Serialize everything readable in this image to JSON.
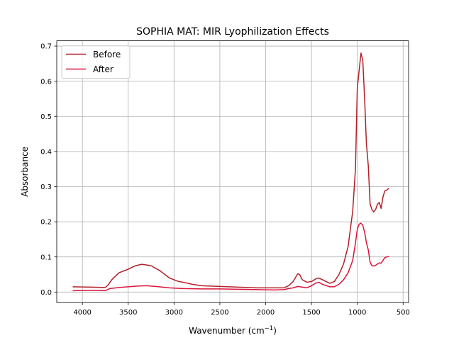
{
  "chart_data": {
    "type": "line",
    "title": "SOPHIA MAT: MIR Lyophilization Effects",
    "xlabel": "Wavenumber (cm",
    "xlabel_sup": "−1",
    "xlabel_close": ")",
    "ylabel": "Absorbance",
    "xlim": [
      4280,
      440
    ],
    "ylim": [
      -0.03,
      0.715
    ],
    "x_inverted": true,
    "grid": true,
    "legend_position": "upper-left",
    "xticks": [
      4000,
      3500,
      3000,
      2500,
      2000,
      1500,
      1000,
      500
    ],
    "xtick_labels": [
      "4000",
      "3500",
      "3000",
      "2500",
      "2000",
      "1500",
      "1000",
      "500"
    ],
    "yticks": [
      0.0,
      0.1,
      0.2,
      0.3,
      0.4,
      0.5,
      0.6,
      0.7
    ],
    "ytick_labels": [
      "0.0",
      "0.1",
      "0.2",
      "0.3",
      "0.4",
      "0.5",
      "0.6",
      "0.7"
    ],
    "series": [
      {
        "name": "Before",
        "color": "#b22028",
        "points": [
          [
            4100,
            0.015
          ],
          [
            3900,
            0.014
          ],
          [
            3750,
            0.013
          ],
          [
            3720,
            0.02
          ],
          [
            3680,
            0.035
          ],
          [
            3600,
            0.055
          ],
          [
            3500,
            0.065
          ],
          [
            3420,
            0.075
          ],
          [
            3350,
            0.079
          ],
          [
            3250,
            0.075
          ],
          [
            3150,
            0.06
          ],
          [
            3050,
            0.04
          ],
          [
            2950,
            0.03
          ],
          [
            2900,
            0.028
          ],
          [
            2800,
            0.022
          ],
          [
            2700,
            0.018
          ],
          [
            2500,
            0.016
          ],
          [
            2300,
            0.014
          ],
          [
            2100,
            0.012
          ],
          [
            1900,
            0.012
          ],
          [
            1800,
            0.012
          ],
          [
            1750,
            0.018
          ],
          [
            1700,
            0.03
          ],
          [
            1650,
            0.052
          ],
          [
            1630,
            0.05
          ],
          [
            1600,
            0.035
          ],
          [
            1550,
            0.028
          ],
          [
            1500,
            0.03
          ],
          [
            1450,
            0.038
          ],
          [
            1420,
            0.04
          ],
          [
            1380,
            0.035
          ],
          [
            1300,
            0.025
          ],
          [
            1250,
            0.03
          ],
          [
            1200,
            0.05
          ],
          [
            1150,
            0.08
          ],
          [
            1100,
            0.13
          ],
          [
            1050,
            0.23
          ],
          [
            1020,
            0.35
          ],
          [
            1000,
            0.58
          ],
          [
            980,
            0.63
          ],
          [
            960,
            0.68
          ],
          [
            940,
            0.66
          ],
          [
            920,
            0.55
          ],
          [
            900,
            0.42
          ],
          [
            880,
            0.36
          ],
          [
            860,
            0.25
          ],
          [
            840,
            0.235
          ],
          [
            820,
            0.228
          ],
          [
            800,
            0.235
          ],
          [
            780,
            0.25
          ],
          [
            760,
            0.255
          ],
          [
            740,
            0.238
          ],
          [
            720,
            0.27
          ],
          [
            700,
            0.288
          ],
          [
            680,
            0.29
          ],
          [
            660,
            0.294
          ]
        ]
      },
      {
        "name": "After",
        "color": "#dc143c",
        "points": [
          [
            4100,
            0.004
          ],
          [
            3900,
            0.005
          ],
          [
            3750,
            0.004
          ],
          [
            3700,
            0.01
          ],
          [
            3600,
            0.013
          ],
          [
            3500,
            0.015
          ],
          [
            3400,
            0.017
          ],
          [
            3300,
            0.018
          ],
          [
            3200,
            0.016
          ],
          [
            3050,
            0.012
          ],
          [
            2900,
            0.01
          ],
          [
            2700,
            0.009
          ],
          [
            2500,
            0.009
          ],
          [
            2300,
            0.008
          ],
          [
            2100,
            0.007
          ],
          [
            1900,
            0.006
          ],
          [
            1800,
            0.007
          ],
          [
            1750,
            0.01
          ],
          [
            1700,
            0.012
          ],
          [
            1650,
            0.016
          ],
          [
            1600,
            0.014
          ],
          [
            1550,
            0.012
          ],
          [
            1500,
            0.018
          ],
          [
            1450,
            0.026
          ],
          [
            1420,
            0.028
          ],
          [
            1380,
            0.022
          ],
          [
            1300,
            0.015
          ],
          [
            1250,
            0.015
          ],
          [
            1200,
            0.022
          ],
          [
            1150,
            0.035
          ],
          [
            1100,
            0.055
          ],
          [
            1050,
            0.09
          ],
          [
            1020,
            0.14
          ],
          [
            1000,
            0.178
          ],
          [
            980,
            0.193
          ],
          [
            960,
            0.196
          ],
          [
            940,
            0.19
          ],
          [
            920,
            0.17
          ],
          [
            900,
            0.14
          ],
          [
            880,
            0.12
          ],
          [
            860,
            0.085
          ],
          [
            840,
            0.075
          ],
          [
            820,
            0.074
          ],
          [
            800,
            0.076
          ],
          [
            780,
            0.08
          ],
          [
            760,
            0.083
          ],
          [
            740,
            0.082
          ],
          [
            720,
            0.09
          ],
          [
            700,
            0.098
          ],
          [
            680,
            0.1
          ],
          [
            660,
            0.101
          ]
        ]
      }
    ]
  }
}
